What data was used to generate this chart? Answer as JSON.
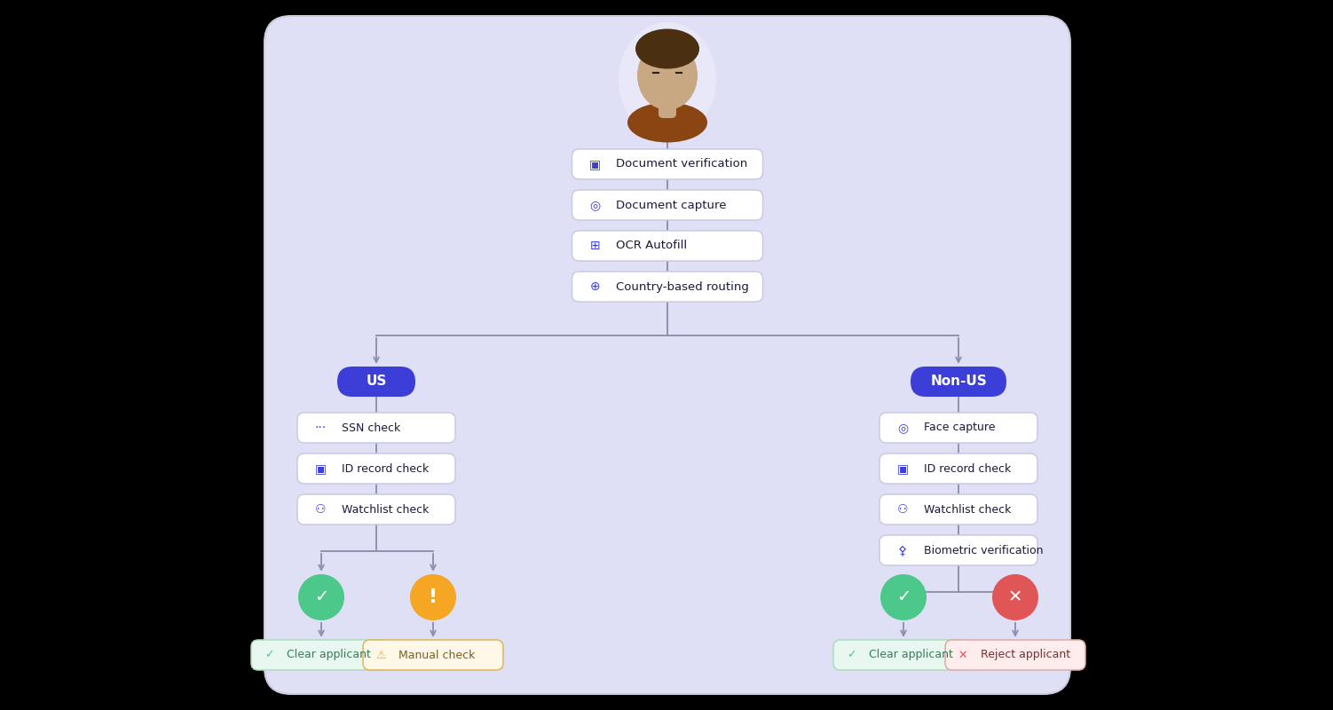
{
  "bg_color": "#DFE0F5",
  "panel_fc": "#DFE0F5",
  "panel_ec": "#CCCCDD",
  "card_fc": "#FFFFFF",
  "card_ec": "#CACAE0",
  "blue_btn": "#3B3FD8",
  "line_color": "#9090B0",
  "icon_blue": "#3B3FD8",
  "text_dark": "#1A1A3A",
  "green_circle": "#4CC98A",
  "orange_circle": "#F5A623",
  "red_circle": "#E05555",
  "clear_fc": "#E8F8F0",
  "clear_ec": "#AADDBB",
  "clear_tc": "#3A7A5A",
  "manual_fc": "#FFF8E8",
  "manual_ec": "#DDB855",
  "manual_tc": "#7A6020",
  "reject_fc": "#FFECEC",
  "reject_ec": "#DDAAAA",
  "reject_tc": "#7A3030",
  "avatar_bg": "#E8E8F8",
  "avatar_face": "#C8A882",
  "avatar_hair": "#4A3010",
  "avatar_shirt": "#8B4513",
  "steps_center": [
    "Document verification",
    "Document capture",
    "OCR Autofill",
    "Country-based routing"
  ],
  "us_steps": [
    "SSN check",
    "ID record check",
    "Watchlist check"
  ],
  "nonus_steps": [
    "Face capture",
    "ID record check",
    "Watchlist check",
    "Biometric verification"
  ],
  "us_label": "US",
  "nonus_label": "Non-US",
  "us_outcomes": [
    "Clear applicant",
    "Manual check"
  ],
  "nonus_outcomes": [
    "Clear applicant",
    "Reject applicant"
  ]
}
